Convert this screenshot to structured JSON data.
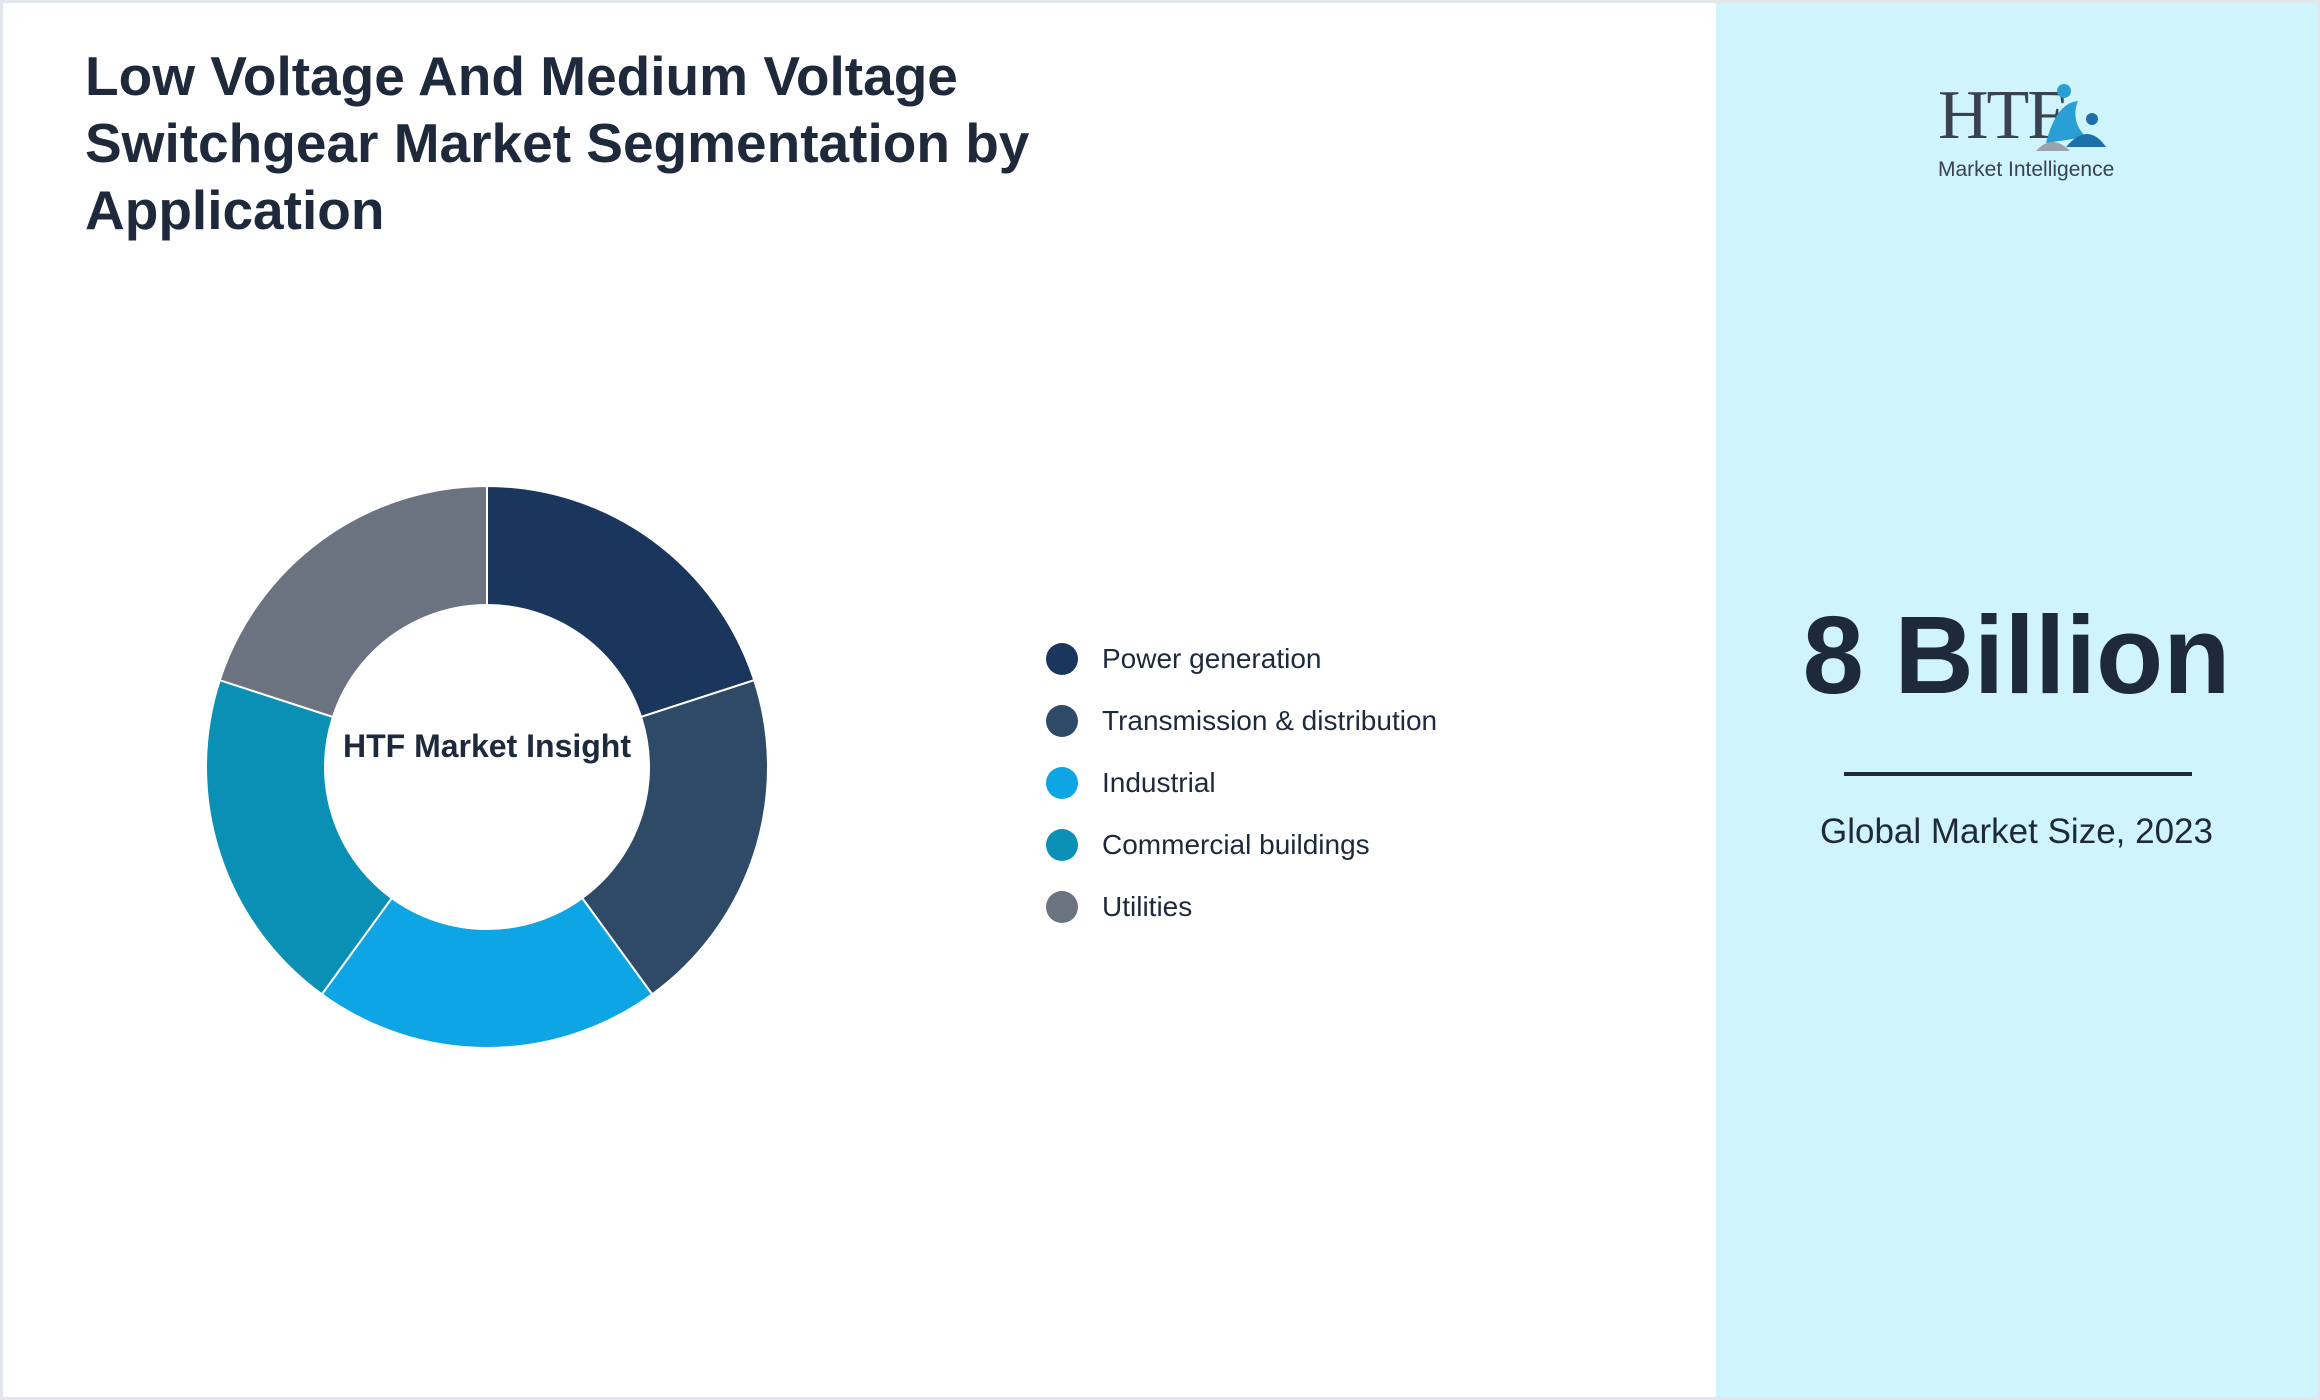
{
  "title": "Low Voltage And Medium Voltage Switchgear Market Segmentation by Application",
  "chart_data": {
    "type": "pie",
    "style": "donut",
    "center_label": "HTF Market Insight",
    "categories": [
      "Power generation",
      "Transmission & distribution",
      "Industrial",
      "Commercial buildings",
      "Utilities"
    ],
    "values": [
      20,
      20,
      20,
      20,
      20
    ],
    "colors": [
      "#1b365d",
      "#2e4a66",
      "#0ea5e4",
      "#0b90b5",
      "#6b7280"
    ],
    "legend_position": "right"
  },
  "sidebar": {
    "logo_text": "HTF",
    "logo_subtext": "Market Intelligence",
    "market_value": "8 Billion",
    "caption": "Global Market Size, 2023"
  }
}
